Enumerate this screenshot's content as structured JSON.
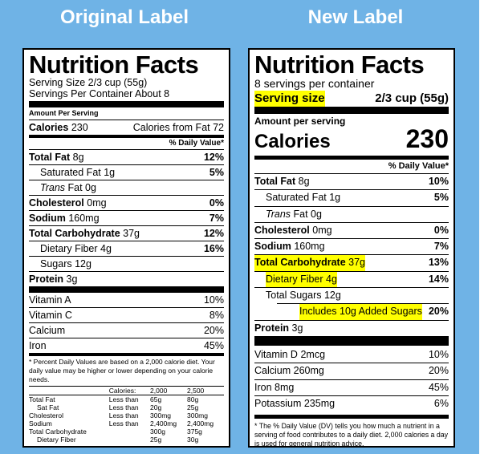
{
  "headers": {
    "original": "Original Label",
    "new": "New Label"
  },
  "original": {
    "title": "Nutrition Facts",
    "serving_size": "Serving Size 2/3 cup (55g)",
    "servings_per_container": "Servings Per Container About 8",
    "amount_per_serving": "Amount Per Serving",
    "calories_label": "Calories",
    "calories_value": "230",
    "calories_from_fat": "Calories from Fat 72",
    "daily_value_header": "% Daily Value*",
    "nutrients": [
      {
        "name": "Total Fat",
        "amount": "8g",
        "dv": "12%"
      },
      {
        "name": "Saturated Fat",
        "amount": "1g",
        "dv": "5%"
      },
      {
        "name": "Trans",
        "amount": "Fat 0g",
        "dv": ""
      },
      {
        "name": "Cholesterol",
        "amount": "0mg",
        "dv": "0%"
      },
      {
        "name": "Sodium",
        "amount": "160mg",
        "dv": "7%"
      },
      {
        "name": "Total Carbohydrate",
        "amount": "37g",
        "dv": "12%"
      },
      {
        "name": "Dietary Fiber",
        "amount": "4g",
        "dv": "16%"
      },
      {
        "name": "Sugars",
        "amount": "12g",
        "dv": ""
      },
      {
        "name": "Protein",
        "amount": "3g",
        "dv": ""
      }
    ],
    "vitamins": [
      {
        "name": "Vitamin A",
        "dv": "10%"
      },
      {
        "name": "Vitamin C",
        "dv": "8%"
      },
      {
        "name": "Calcium",
        "dv": "20%"
      },
      {
        "name": "Iron",
        "dv": "45%"
      }
    ],
    "footnote": "* Percent Daily Values are based on a 2,000 calorie diet. Your daily value may be higher or lower depending on your calorie needs.",
    "footer_table": {
      "header": [
        "",
        "Calories:",
        "2,000",
        "2,500"
      ],
      "rows": [
        [
          "Total Fat",
          "Less than",
          "65g",
          "80g"
        ],
        [
          "Sat Fat",
          "Less than",
          "20g",
          "25g"
        ],
        [
          "Cholesterol",
          "Less than",
          "300mg",
          "300mg"
        ],
        [
          "Sodium",
          "Less than",
          "2,400mg",
          "2,400mg"
        ],
        [
          "Total Carbohydrate",
          "",
          "300g",
          "375g"
        ],
        [
          "Dietary Fiber",
          "",
          "25g",
          "30g"
        ]
      ]
    }
  },
  "new": {
    "title": "Nutrition Facts",
    "servings_per_container": "8 servings per container",
    "serving_size_label": "Serving size",
    "serving_size_value": "2/3 cup (55g)",
    "amount_per_serving": "Amount per serving",
    "calories_label": "Calories",
    "calories_value": "230",
    "daily_value_header": "% Daily Value*",
    "nutrients": [
      {
        "name": "Total Fat",
        "amount": "8g",
        "dv": "10%"
      },
      {
        "name": "Saturated Fat",
        "amount": "1g",
        "dv": "5%"
      },
      {
        "name": "Trans",
        "amount": "Fat 0g",
        "dv": ""
      },
      {
        "name": "Cholesterol",
        "amount": "0mg",
        "dv": "0%"
      },
      {
        "name": "Sodium",
        "amount": "160mg",
        "dv": "7%"
      },
      {
        "name": "Total Carbohydrate",
        "amount": "37g",
        "dv": "13%"
      },
      {
        "name": "Dietary Fiber",
        "amount": "4g",
        "dv": "14%"
      },
      {
        "name": "Total Sugars",
        "amount": "12g",
        "dv": ""
      },
      {
        "name": "Includes 10g Added Sugars",
        "amount": "",
        "dv": "20%"
      },
      {
        "name": "Protein",
        "amount": "3g",
        "dv": ""
      }
    ],
    "vitamins": [
      {
        "name": "Vitamin D",
        "amount": "2mcg",
        "dv": "10%"
      },
      {
        "name": "Calcium",
        "amount": "260mg",
        "dv": "20%"
      },
      {
        "name": "Iron",
        "amount": "8mg",
        "dv": "45%"
      },
      {
        "name": "Potassium",
        "amount": "235mg",
        "dv": "6%"
      }
    ],
    "footnote": "* The % Daily Value (DV) tells you how much a nutrient in a serving of food contributes to a daily diet. 2,000 calories a day is used for general nutrition advice."
  },
  "colors": {
    "background": "#6fb3e6",
    "highlight": "#ffff00"
  }
}
